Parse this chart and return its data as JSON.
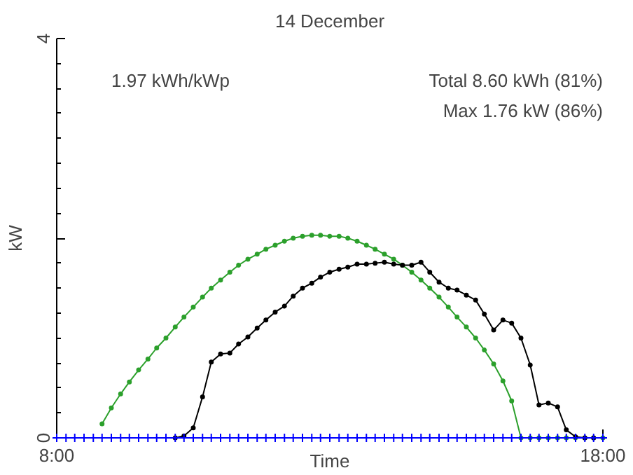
{
  "chart_data": {
    "type": "line",
    "title": "14 December",
    "xlabel": "Time",
    "ylabel": "kW",
    "annotations": [
      "1.97 kWh/kWp",
      "Total 8.60 kWh (81%)",
      "Max 1.76 kW (86%)"
    ],
    "xlim": [
      8,
      18
    ],
    "xticks": [
      {
        "value": 8,
        "label": "8:00"
      },
      {
        "value": 18,
        "label": "18:00"
      }
    ],
    "ylim": [
      0,
      4
    ],
    "yticks": [
      0,
      {
        "value": 2,
        "label": null
      },
      4
    ],
    "grid": false,
    "line_style": "solid",
    "series": [
      {
        "color": "#2ca02c",
        "marker": "circle",
        "x": [
          8.83,
          9.0,
          9.17,
          9.33,
          9.5,
          9.67,
          9.83,
          10.0,
          10.17,
          10.33,
          10.5,
          10.67,
          10.83,
          11.0,
          11.17,
          11.33,
          11.5,
          11.67,
          11.83,
          12.0,
          12.17,
          12.33,
          12.5,
          12.67,
          12.83,
          13.0,
          13.17,
          13.33,
          13.5,
          13.67,
          13.83,
          14.0,
          14.17,
          14.33,
          14.5,
          14.67,
          14.83,
          15.0,
          15.17,
          15.33,
          15.5,
          15.67,
          15.83,
          16.0,
          16.17,
          16.33,
          16.5,
          16.67,
          16.83,
          17.0,
          17.17,
          17.33,
          17.5,
          17.67,
          17.83,
          18.0
        ],
        "values": [
          0.14,
          0.3,
          0.44,
          0.56,
          0.68,
          0.79,
          0.9,
          1.0,
          1.11,
          1.21,
          1.31,
          1.41,
          1.5,
          1.58,
          1.66,
          1.73,
          1.79,
          1.84,
          1.89,
          1.93,
          1.97,
          2.0,
          2.02,
          2.03,
          2.03,
          2.02,
          2.02,
          2.0,
          1.97,
          1.93,
          1.89,
          1.84,
          1.79,
          1.73,
          1.66,
          1.58,
          1.5,
          1.41,
          1.31,
          1.21,
          1.11,
          1.0,
          0.88,
          0.74,
          0.57,
          0.37,
          0,
          0,
          0,
          0,
          0,
          0,
          0,
          0,
          0,
          0
        ]
      },
      {
        "color": "#000000",
        "marker": "circle",
        "x": [
          10.17,
          10.33,
          10.5,
          10.67,
          10.83,
          11.0,
          11.17,
          11.33,
          11.5,
          11.67,
          11.83,
          12.0,
          12.17,
          12.33,
          12.5,
          12.67,
          12.83,
          13.0,
          13.17,
          13.33,
          13.5,
          13.67,
          13.83,
          14.0,
          14.17,
          14.33,
          14.5,
          14.67,
          14.83,
          15.0,
          15.17,
          15.33,
          15.5,
          15.67,
          15.83,
          16.0,
          16.17,
          16.33,
          16.5,
          16.67,
          16.83,
          17.0,
          17.17,
          17.33,
          17.5,
          17.67,
          17.83
        ],
        "values": [
          0,
          0.02,
          0.1,
          0.41,
          0.76,
          0.84,
          0.85,
          0.94,
          1.01,
          1.1,
          1.18,
          1.26,
          1.32,
          1.42,
          1.5,
          1.55,
          1.61,
          1.66,
          1.69,
          1.71,
          1.74,
          1.74,
          1.75,
          1.76,
          1.74,
          1.73,
          1.73,
          1.76,
          1.66,
          1.56,
          1.5,
          1.48,
          1.43,
          1.38,
          1.24,
          1.08,
          1.18,
          1.15,
          1.0,
          0.73,
          0.33,
          0.35,
          0.31,
          0.08,
          0.01,
          0,
          0
        ]
      },
      {
        "color": "#0000ff",
        "marker": "cross",
        "x": [
          8.0,
          8.17,
          8.33,
          8.5,
          8.67,
          8.83,
          9.0,
          9.17,
          9.33,
          9.5,
          9.67,
          9.83,
          10.0,
          10.17,
          10.33,
          10.5,
          10.67,
          10.83,
          11.0,
          11.17,
          11.33,
          11.5,
          11.67,
          11.83,
          12.0,
          12.17,
          12.33,
          12.5,
          12.67,
          12.83,
          13.0,
          13.17,
          13.33,
          13.5,
          13.67,
          13.83,
          14.0,
          14.17,
          14.33,
          14.5,
          14.67,
          14.83,
          15.0,
          15.17,
          15.33,
          15.5,
          15.67,
          15.83,
          16.0,
          16.17,
          16.33,
          16.5,
          16.67,
          16.83,
          17.0,
          17.17,
          17.33,
          17.5,
          17.67,
          17.83,
          18.0
        ],
        "values": [
          0,
          0,
          0,
          0,
          0,
          0,
          0,
          0,
          0,
          0,
          0,
          0,
          0,
          0,
          0,
          0,
          0,
          0,
          0,
          0,
          0,
          0,
          0,
          0,
          0,
          0,
          0,
          0,
          0,
          0,
          0,
          0,
          0,
          0,
          0,
          0,
          0,
          0,
          0,
          0,
          0,
          0,
          0,
          0,
          0,
          0,
          0,
          0,
          0,
          0,
          0,
          0,
          0,
          0,
          0,
          0,
          0,
          0,
          0,
          0,
          0
        ]
      }
    ]
  }
}
